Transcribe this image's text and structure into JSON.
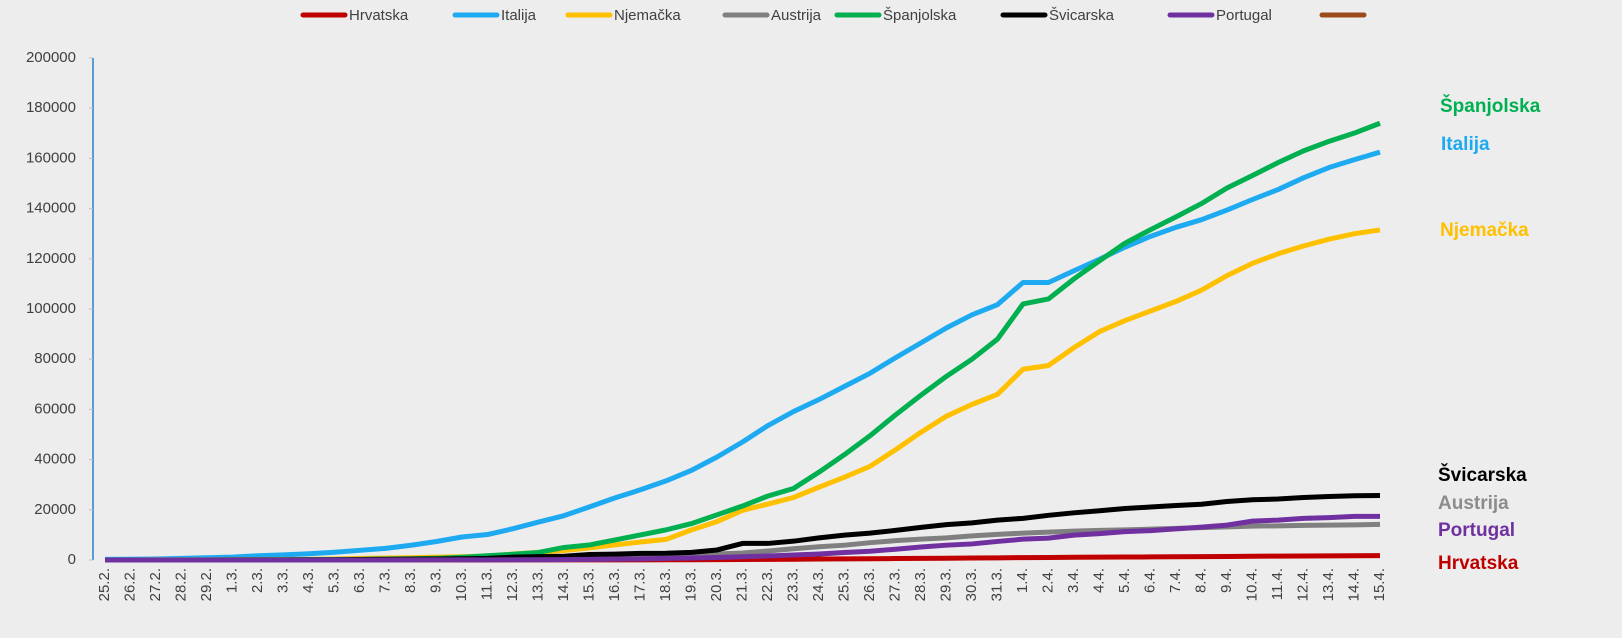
{
  "chart_data": {
    "type": "line",
    "categories": [
      "25.2.",
      "26.2.",
      "27.2.",
      "28.2.",
      "29.2.",
      "1.3.",
      "2.3.",
      "3.3.",
      "4.3.",
      "5.3.",
      "6.3.",
      "7.3.",
      "8.3.",
      "9.3.",
      "10.3.",
      "11.3.",
      "12.3.",
      "13.3.",
      "14.3.",
      "15.3.",
      "16.3.",
      "17.3.",
      "18.3.",
      "19.3.",
      "20.3.",
      "21.3.",
      "22.3.",
      "23.3.",
      "24.3.",
      "25.3.",
      "26.3.",
      "27.3.",
      "28.3.",
      "29.3.",
      "30.3.",
      "31.3.",
      "1.4.",
      "2.4.",
      "3.4.",
      "4.4.",
      "5.4.",
      "6.4.",
      "7.4.",
      "8.4.",
      "9.4.",
      "10.4.",
      "11.4.",
      "12.4.",
      "13.4.",
      "14.4.",
      "15.4."
    ],
    "ylim": [
      0,
      200000
    ],
    "yticks": [
      0,
      20000,
      40000,
      60000,
      80000,
      100000,
      120000,
      140000,
      160000,
      180000,
      200000
    ],
    "grid": false,
    "legend": "top",
    "series": [
      {
        "name": "Hrvatska",
        "color": "#c00000",
        "values": [
          1,
          3,
          3,
          5,
          7,
          7,
          9,
          9,
          10,
          11,
          12,
          12,
          12,
          12,
          14,
          19,
          27,
          32,
          38,
          49,
          57,
          65,
          81,
          105,
          128,
          206,
          254,
          315,
          382,
          442,
          495,
          586,
          657,
          713,
          790,
          867,
          963,
          1011,
          1079,
          1126,
          1182,
          1222,
          1282,
          1343,
          1407,
          1495,
          1534,
          1600,
          1650,
          1704,
          1741
        ]
      },
      {
        "name": "Italija",
        "color": "#1eaaf1",
        "values": [
          229,
          322,
          400,
          650,
          888,
          1128,
          1694,
          2036,
          2502,
          3089,
          3858,
          4636,
          5883,
          7375,
          9172,
          10149,
          12462,
          15113,
          17660,
          21157,
          24747,
          27980,
          31506,
          35713,
          41035,
          47021,
          53578,
          59138,
          63927,
          69176,
          74386,
          80589,
          86498,
          92472,
          97689,
          101739,
          110574,
          110574,
          115242,
          119827,
          124632,
          128948,
          132547,
          135586,
          139422,
          143626,
          147577,
          152271,
          156363,
          159516,
          162488
        ]
      },
      {
        "name": "Njemačka",
        "color": "#ffc000",
        "values": [
          16,
          18,
          26,
          53,
          66,
          117,
          150,
          188,
          240,
          400,
          639,
          795,
          902,
          1139,
          1296,
          1567,
          2369,
          3062,
          3795,
          4838,
          6012,
          7156,
          8198,
          12000,
          15300,
          19800,
          22300,
          24900,
          29000,
          33000,
          37300,
          43900,
          50900,
          57300,
          62000,
          66000,
          76000,
          77500,
          84600,
          91000,
          95400,
          99200,
          103000,
          107500,
          113300,
          118200,
          122000,
          125100,
          127800,
          130000,
          131500
        ]
      },
      {
        "name": "Austrija",
        "color": "#808080",
        "values": [
          0,
          2,
          3,
          5,
          9,
          10,
          14,
          18,
          24,
          37,
          47,
          79,
          104,
          131,
          182,
          246,
          302,
          504,
          655,
          860,
          1018,
          1332,
          1646,
          2013,
          2400,
          2800,
          3600,
          4500,
          5300,
          5900,
          6900,
          7700,
          8300,
          8800,
          9600,
          10200,
          10700,
          11100,
          11500,
          11800,
          12000,
          12300,
          12600,
          12900,
          13200,
          13500,
          13600,
          13800,
          13900,
          14000,
          14200
        ]
      },
      {
        "name": "Španjolska",
        "color": "#00b050",
        "values": [
          2,
          6,
          13,
          15,
          32,
          45,
          84,
          120,
          165,
          222,
          259,
          400,
          500,
          673,
          1073,
          1695,
          2277,
          3000,
          5000,
          6000,
          8000,
          10000,
          12000,
          14500,
          18000,
          21500,
          25500,
          28500,
          35000,
          42000,
          49500,
          57800,
          65700,
          73200,
          80000,
          88000,
          102000,
          104000,
          112000,
          119200,
          126200,
          131600,
          136700,
          142000,
          148200,
          153200,
          158300,
          163000,
          166800,
          170100,
          174000
        ]
      },
      {
        "name": "Švicarska",
        "color": "#000000",
        "values": [
          1,
          1,
          8,
          8,
          18,
          27,
          42,
          56,
          90,
          114,
          214,
          268,
          337,
          374,
          491,
          652,
          1139,
          1359,
          1500,
          2200,
          2330,
          2650,
          2700,
          3028,
          4000,
          6600,
          6600,
          7500,
          8800,
          9900,
          10700,
          11800,
          13000,
          14100,
          14800,
          15900,
          16600,
          17800,
          18800,
          19600,
          20500,
          21100,
          21700,
          22200,
          23300,
          24000,
          24300,
          24900,
          25300,
          25600,
          25700
        ]
      },
      {
        "name": "Portugal",
        "color": "#7030a0",
        "values": [
          0,
          0,
          0,
          0,
          0,
          0,
          2,
          4,
          5,
          8,
          13,
          20,
          30,
          30,
          41,
          59,
          78,
          112,
          169,
          245,
          331,
          448,
          642,
          785,
          1000,
          1300,
          1600,
          2000,
          2400,
          3000,
          3500,
          4300,
          5200,
          5900,
          6400,
          7400,
          8300,
          8700,
          9900,
          10500,
          11300,
          11700,
          12400,
          13100,
          13900,
          15500,
          15900,
          16600,
          16900,
          17400,
          17400
        ]
      },
      {
        "name": null,
        "color": "#9c4a1a",
        "values": [
          null,
          null,
          null,
          null,
          null,
          null,
          null,
          null,
          null,
          null,
          null,
          null,
          null,
          null,
          null,
          null,
          null,
          null,
          null,
          null,
          null,
          null,
          null,
          null,
          null,
          null,
          null,
          null,
          null,
          null,
          null,
          null,
          null,
          null,
          null,
          null,
          null,
          null,
          null,
          null,
          null,
          null,
          null,
          null,
          null,
          null,
          null,
          null,
          null,
          null,
          null
        ]
      }
    ]
  }
}
